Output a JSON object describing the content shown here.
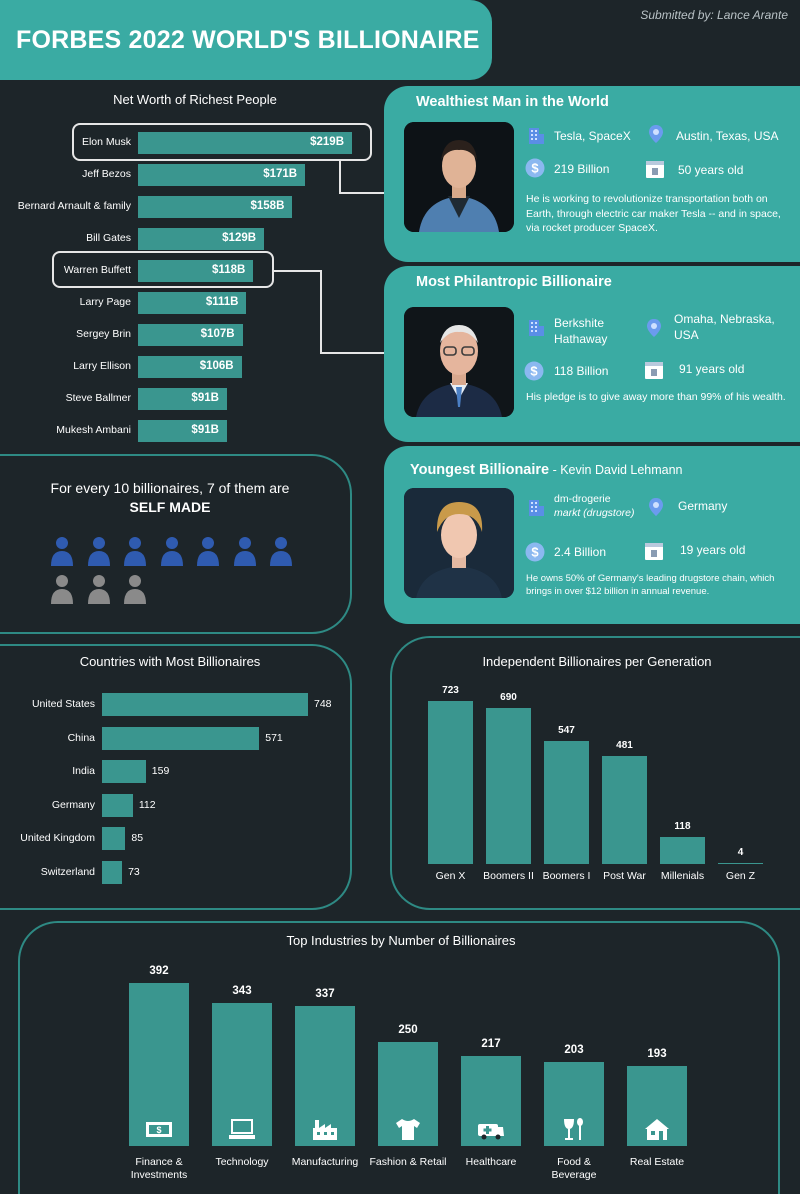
{
  "header": {
    "title": "FORBES 2022 WORLD'S BILLIONAIRE",
    "submitted": "Submitted by: Lance Arante"
  },
  "colors": {
    "background": "#1d2529",
    "accent": "#3aaba3",
    "bar": "#3a968f",
    "self_made": "#2f5bb0",
    "not_self_made": "#8a8a8a"
  },
  "net_worth": {
    "title": "Net Worth of Richest People",
    "max": 219,
    "highlighted": [
      "Elon Musk",
      "Warren Buffett"
    ]
  },
  "wealthiest": {
    "title": "Wealthiest Man in the World",
    "company": "Tesla, SpaceX",
    "location": "Austin, Texas, USA",
    "worth": "219 Billion",
    "age": "50 years old",
    "description": "He is working to revolutionize transportation both on Earth, through electric car maker Tesla -- and in space, via rocket producer SpaceX.",
    "icons": [
      "building-icon",
      "location-pin-icon",
      "dollar-icon",
      "calendar-icon"
    ]
  },
  "philanthropic": {
    "title": "Most Philantropic Billionaire",
    "company_line1": "Berkshite",
    "company_line2": "Hathaway",
    "location_line1": "Omaha, Nebraska,",
    "location_line2": "USA",
    "worth": "118 Billion",
    "age": "91 years old",
    "description": "His pledge is to give away more than 99% of his wealth."
  },
  "youngest": {
    "title": "Youngest Billionaire",
    "name": " - Kevin David Lehmann",
    "company_line1": "dm-drogerie",
    "company_line2": "markt (drugstore)",
    "location": "Germany",
    "worth": "2.4 Billion",
    "age": "19 years old",
    "description": "He owns 50% of Germany's leading drugstore chain, which brings in over $12 billion in annual revenue."
  },
  "self_made": {
    "line1": "For every 10 billionaires, 7 of them are",
    "line2": "SELF MADE",
    "self_made_count": 7,
    "total": 10
  },
  "countries": {
    "title": "Countries with Most Billionaires"
  },
  "generations": {
    "title": "Independent Billionaires per Generation"
  },
  "industries": {
    "title": "Top Industries by Number of Billionaires",
    "icons": [
      "money-icon",
      "computer-icon",
      "factory-icon",
      "shirt-icon",
      "ambulance-icon",
      "food-icon",
      "house-icon"
    ]
  },
  "chart_data": [
    {
      "type": "bar",
      "orientation": "horizontal",
      "title": "Net Worth of Richest People",
      "categories": [
        "Elon Musk",
        "Jeff Bezos",
        "Bernard Arnault & family",
        "Bill Gates",
        "Warren Buffett",
        "Larry Page",
        "Sergey Brin",
        "Larry Ellison",
        "Steve Ballmer",
        "Mukesh Ambani"
      ],
      "values": [
        219,
        171,
        158,
        129,
        118,
        111,
        107,
        106,
        91,
        91
      ],
      "value_labels": [
        "$219B",
        "$171B",
        "$158B",
        "$129B",
        "$118B",
        "$111B",
        "$107B",
        "$106B",
        "$91B",
        "$91B"
      ],
      "grid": false
    },
    {
      "type": "bar",
      "orientation": "horizontal",
      "title": "Countries with Most Billionaires",
      "categories": [
        "United States",
        "China",
        "India",
        "Germany",
        "United Kingdom",
        "Switzerland"
      ],
      "values": [
        748,
        571,
        159,
        112,
        85,
        73
      ],
      "grid": false
    },
    {
      "type": "bar",
      "orientation": "vertical",
      "title": "Independent Billionaires per Generation",
      "categories": [
        "Gen X",
        "Boomers II",
        "Boomers I",
        "Post War",
        "Millenials",
        "Gen Z"
      ],
      "values": [
        723,
        690,
        547,
        481,
        118,
        4
      ],
      "grid": false
    },
    {
      "type": "bar",
      "orientation": "vertical",
      "title": "Top Industries by Number of Billionaires",
      "categories": [
        "Finance & Investments",
        "Technology",
        "Manufacturing",
        "Fashion & Retail",
        "Healthcare",
        "Food & Beverage",
        "Real Estate"
      ],
      "label_lines": [
        [
          "Finance &",
          "Investments"
        ],
        [
          "Technology"
        ],
        [
          "Manufacturing"
        ],
        [
          "Fashion & Retail"
        ],
        [
          "Healthcare"
        ],
        [
          "Food &",
          "Beverage"
        ],
        [
          "Real Estate"
        ]
      ],
      "values": [
        392,
        343,
        337,
        250,
        217,
        203,
        193
      ],
      "grid": false
    }
  ]
}
